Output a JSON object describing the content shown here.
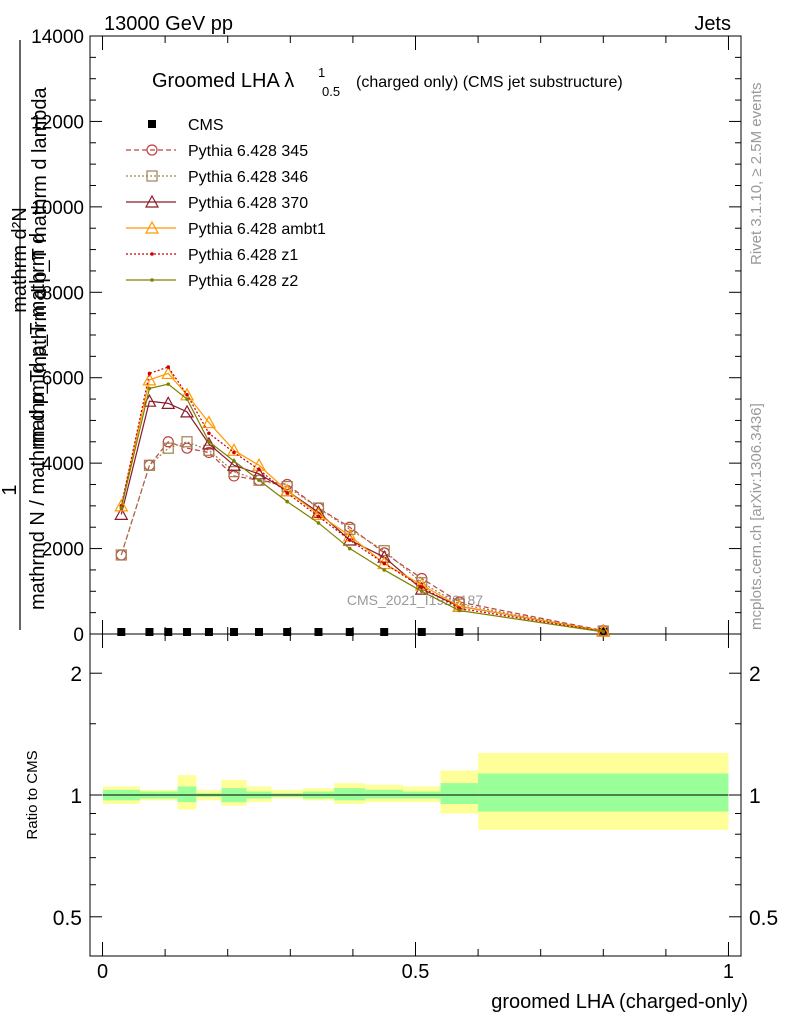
{
  "header": {
    "left": "13000 GeV pp",
    "right": "Jets"
  },
  "side_labels": {
    "rivet": "Rivet 3.1.10, ≥ 2.5M events",
    "mcplots": "mcplots.cern.ch [arXiv:1306.3436]"
  },
  "watermark": "CMS_2021_I1920187",
  "main_plot": {
    "title": "Groomed LHA λ",
    "title_sup": "1",
    "title_sub": "0.5",
    "title_tail": "(charged only) (CMS jet substructure)",
    "ylabel_top": "mathrm d²N",
    "ylabel_top2": "mathrm d p_T mathrm d lambda",
    "ylabel_one": "1",
    "ylabel_bot": "mathrmd N / mathrm d p_T",
    "ylabel_bot2": "mathrm d p_T mathrm d"
  },
  "ratio_plot": {
    "ylabel": "Ratio to CMS",
    "xlabel": "groomed LHA (charged-only)"
  },
  "axes": {
    "main_y_ticks": [
      "0",
      "2000",
      "4000",
      "6000",
      "8000",
      "10000",
      "12000",
      "14000"
    ],
    "ratio_y_ticks": [
      "0.5",
      "1",
      "2"
    ],
    "x_ticks": [
      "0",
      "0.5",
      "1"
    ]
  },
  "chart_data": {
    "type": "line",
    "x": [
      0.03,
      0.075,
      0.105,
      0.135,
      0.17,
      0.21,
      0.25,
      0.295,
      0.345,
      0.395,
      0.45,
      0.51,
      0.57,
      0.8
    ],
    "xlim": [
      -0.02,
      1.02
    ],
    "ylim": [
      0,
      14000
    ],
    "ratio_ylim": [
      0.4,
      2.5
    ],
    "grid": false,
    "legend_position": "top-left",
    "series": [
      {
        "name": "CMS",
        "color": "#000000",
        "marker": "square-filled",
        "line": "none",
        "values": [
          0,
          0,
          0,
          0,
          0,
          0,
          0,
          0,
          0,
          0,
          0,
          0,
          0,
          0
        ]
      },
      {
        "name": "Pythia 6.428 345",
        "color": "#c04040",
        "marker": "circle-open",
        "line": "dashed",
        "values": [
          1850,
          3950,
          4500,
          4350,
          4250,
          3700,
          3600,
          3500,
          2950,
          2500,
          1900,
          1300,
          750,
          80
        ]
      },
      {
        "name": "Pythia 6.428 346",
        "color": "#a08050",
        "marker": "square-open",
        "line": "dotted",
        "values": [
          1850,
          3950,
          4350,
          4500,
          4300,
          3800,
          3600,
          3450,
          2950,
          2450,
          1950,
          1200,
          700,
          70
        ]
      },
      {
        "name": "Pythia 6.428 370",
        "color": "#8b1a2b",
        "marker": "triangle-open",
        "line": "solid",
        "values": [
          2800,
          5450,
          5400,
          5200,
          4450,
          3950,
          3750,
          3350,
          2850,
          2200,
          1800,
          1050,
          650,
          70
        ]
      },
      {
        "name": "Pythia 6.428 ambt1",
        "color": "#ff9900",
        "marker": "triangle-open",
        "line": "solid",
        "values": [
          3000,
          5950,
          6100,
          5600,
          4950,
          4300,
          3950,
          3350,
          2800,
          2300,
          1650,
          1150,
          650,
          70
        ]
      },
      {
        "name": "Pythia 6.428 z1",
        "color": "#cc0000",
        "marker": "dot",
        "line": "dotted",
        "values": [
          3000,
          6100,
          6250,
          5600,
          4700,
          4250,
          3850,
          3300,
          2750,
          2200,
          1650,
          1100,
          600,
          60
        ]
      },
      {
        "name": "Pythia 6.428 z2",
        "color": "#808000",
        "marker": "dot",
        "line": "solid",
        "values": [
          2950,
          5750,
          5850,
          5500,
          4500,
          4050,
          3600,
          3100,
          2600,
          2000,
          1500,
          1000,
          550,
          50
        ]
      }
    ],
    "ratio_bands": [
      {
        "x0": 0.0,
        "x1": 0.06,
        "inner": [
          0.97,
          1.03
        ],
        "outer": [
          0.95,
          1.05
        ]
      },
      {
        "x0": 0.06,
        "x1": 0.09,
        "inner": [
          0.98,
          1.02
        ],
        "outer": [
          0.97,
          1.03
        ]
      },
      {
        "x0": 0.09,
        "x1": 0.12,
        "inner": [
          0.98,
          1.02
        ],
        "outer": [
          0.97,
          1.03
        ]
      },
      {
        "x0": 0.12,
        "x1": 0.15,
        "inner": [
          0.96,
          1.05
        ],
        "outer": [
          0.92,
          1.12
        ]
      },
      {
        "x0": 0.15,
        "x1": 0.19,
        "inner": [
          0.99,
          1.01
        ],
        "outer": [
          0.97,
          1.03
        ]
      },
      {
        "x0": 0.19,
        "x1": 0.23,
        "inner": [
          0.96,
          1.04
        ],
        "outer": [
          0.94,
          1.09
        ]
      },
      {
        "x0": 0.23,
        "x1": 0.27,
        "inner": [
          0.98,
          1.02
        ],
        "outer": [
          0.96,
          1.05
        ]
      },
      {
        "x0": 0.27,
        "x1": 0.32,
        "inner": [
          0.99,
          1.01
        ],
        "outer": [
          0.98,
          1.03
        ]
      },
      {
        "x0": 0.32,
        "x1": 0.37,
        "inner": [
          0.98,
          1.02
        ],
        "outer": [
          0.97,
          1.04
        ]
      },
      {
        "x0": 0.37,
        "x1": 0.42,
        "inner": [
          0.97,
          1.04
        ],
        "outer": [
          0.95,
          1.07
        ]
      },
      {
        "x0": 0.42,
        "x1": 0.48,
        "inner": [
          0.98,
          1.03
        ],
        "outer": [
          0.96,
          1.06
        ]
      },
      {
        "x0": 0.48,
        "x1": 0.54,
        "inner": [
          0.98,
          1.02
        ],
        "outer": [
          0.96,
          1.05
        ]
      },
      {
        "x0": 0.54,
        "x1": 0.6,
        "inner": [
          0.95,
          1.07
        ],
        "outer": [
          0.9,
          1.15
        ]
      },
      {
        "x0": 0.6,
        "x1": 1.0,
        "inner": [
          0.91,
          1.13
        ],
        "outer": [
          0.82,
          1.27
        ]
      }
    ]
  }
}
